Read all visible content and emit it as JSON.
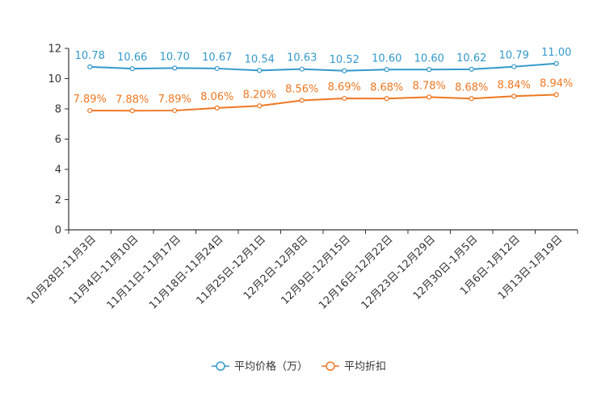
{
  "chart_data": {
    "type": "line",
    "categories": [
      "10月28日-11月3日",
      "11月4日-11月10日",
      "11月11日-11月17日",
      "11月18日-11月24日",
      "11月25日-12月1日",
      "12月2日-12月8日",
      "12月9日-12月15日",
      "12月16日-12月22日",
      "12月23日-12月29日",
      "12月30日-1月5日",
      "1月6日-1月12日",
      "1月13日-1月19日"
    ],
    "series": [
      {
        "name": "平均价格（万）",
        "color": "#3399cc",
        "values": [
          10.78,
          10.66,
          10.7,
          10.67,
          10.54,
          10.63,
          10.52,
          10.6,
          10.6,
          10.62,
          10.79,
          11.0
        ],
        "labels": [
          "10.78",
          "10.66",
          "10.70",
          "10.67",
          "10.54",
          "10.63",
          "10.52",
          "10.60",
          "10.60",
          "10.62",
          "10.79",
          "11.00"
        ]
      },
      {
        "name": "平均折扣",
        "color": "#ee7722",
        "values": [
          7.89,
          7.88,
          7.89,
          8.06,
          8.2,
          8.56,
          8.69,
          8.68,
          8.78,
          8.68,
          8.84,
          8.94
        ],
        "labels": [
          "7.89%",
          "7.88%",
          "7.89%",
          "8.06%",
          "8.20%",
          "8.56%",
          "8.69%",
          "8.68%",
          "8.78%",
          "8.68%",
          "8.84%",
          "8.94%"
        ]
      }
    ],
    "yticks": [
      "0",
      "2",
      "4",
      "6",
      "8",
      "10",
      "12"
    ],
    "ylim": [
      0,
      12
    ],
    "legend_position": "bottom-center"
  }
}
